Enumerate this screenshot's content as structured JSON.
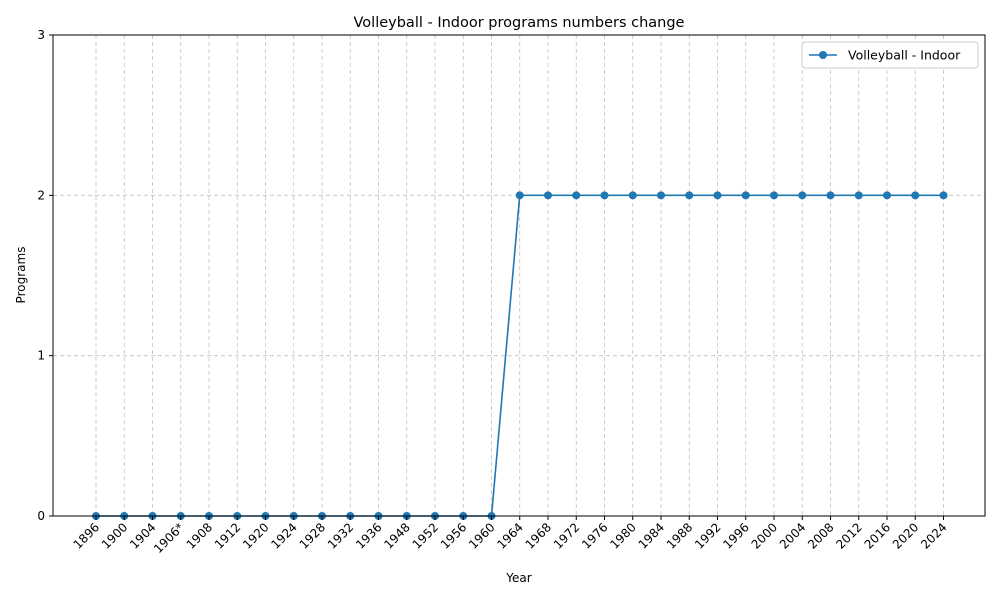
{
  "chart_data": {
    "type": "line",
    "title": "Volleyball - Indoor programs numbers change",
    "xlabel": "Year",
    "ylabel": "Programs",
    "categories": [
      "1896",
      "1900",
      "1904",
      "1906*",
      "1908",
      "1912",
      "1920",
      "1924",
      "1928",
      "1932",
      "1936",
      "1948",
      "1952",
      "1956",
      "1960",
      "1964",
      "1968",
      "1972",
      "1976",
      "1980",
      "1984",
      "1988",
      "1992",
      "1996",
      "2000",
      "2004",
      "2008",
      "2012",
      "2016",
      "2020",
      "2024"
    ],
    "series": [
      {
        "name": "Volleyball - Indoor",
        "color": "#1f77b4",
        "values": [
          0,
          0,
          0,
          0,
          0,
          0,
          0,
          0,
          0,
          0,
          0,
          0,
          0,
          0,
          0,
          2,
          2,
          2,
          2,
          2,
          2,
          2,
          2,
          2,
          2,
          2,
          2,
          2,
          2,
          2,
          2
        ]
      }
    ],
    "ylim": [
      0,
      3
    ],
    "yticks": [
      0,
      1,
      2,
      3
    ],
    "grid": true,
    "legend_position": "top-right"
  }
}
